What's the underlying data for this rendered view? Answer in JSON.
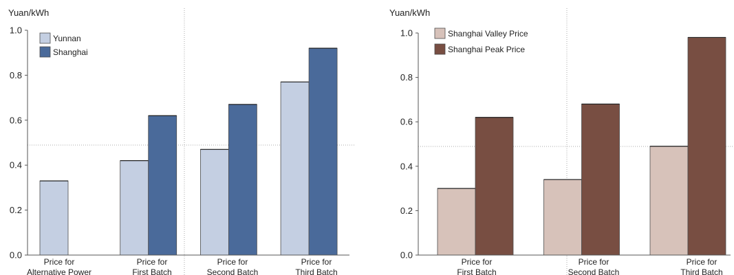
{
  "chart_data": [
    {
      "type": "bar",
      "ylabel": "Yuan/kWh",
      "ylim": [
        0,
        1.0
      ],
      "yticks": [
        "0.0",
        "0.2",
        "0.4",
        "0.6",
        "0.8",
        "1.0"
      ],
      "categories": [
        [
          "Price for",
          "Alternative Power"
        ],
        [
          "Price for",
          "First Batch"
        ],
        [
          "Price for",
          "Second Batch"
        ],
        [
          "Price for",
          "Third Batch"
        ]
      ],
      "series": [
        {
          "name": "Yunnan",
          "color": "#c4cfe2",
          "values": [
            0.33,
            0.42,
            0.47,
            0.77
          ]
        },
        {
          "name": "Shanghai",
          "color": "#4a6a9a",
          "values": [
            null,
            0.62,
            0.67,
            0.92
          ]
        }
      ],
      "legend": "top-left",
      "grid": false
    },
    {
      "type": "bar",
      "ylabel": "Yuan/kWh",
      "ylim": [
        0,
        1.0
      ],
      "yticks": [
        "0.0",
        "0.2",
        "0.4",
        "0.6",
        "0.8",
        "1.0"
      ],
      "categories": [
        [
          "Price for",
          "First Batch"
        ],
        [
          "Price for",
          "Second Batch"
        ],
        [
          "Price for",
          "Third Batch"
        ]
      ],
      "series": [
        {
          "name": "Shanghai Valley Price",
          "color": "#d7c2ba",
          "values": [
            0.3,
            0.34,
            0.49
          ]
        },
        {
          "name": "Shanghai Peak Price",
          "color": "#784e42",
          "values": [
            0.62,
            0.68,
            0.98
          ]
        }
      ],
      "legend": "top-left",
      "grid": false
    }
  ]
}
